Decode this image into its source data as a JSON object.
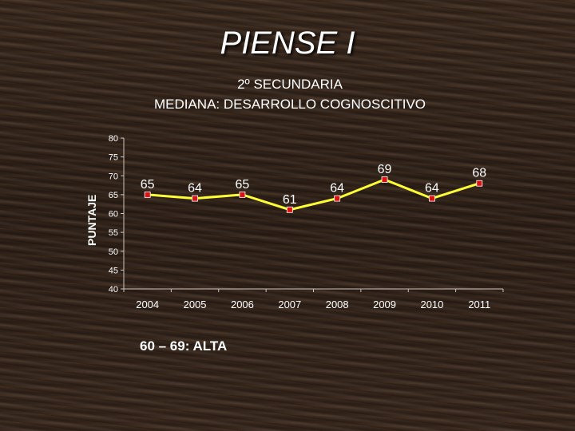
{
  "title": "PIENSE I",
  "subtitle_line1": "2º SECUNDARIA",
  "subtitle_line2": "MEDIANA: DESARROLLO COGNOSCITIVO",
  "note": "60 – 69: ALTA",
  "colors": {
    "line": "#ffff33",
    "marker": "#dd1111",
    "text": "#ffffff",
    "axis": "#cfc6bd"
  },
  "chart_data": {
    "type": "line",
    "title": "",
    "xlabel": "",
    "ylabel": "PUNTAJE",
    "categories": [
      "2004",
      "2005",
      "2006",
      "2007",
      "2008",
      "2009",
      "2010",
      "2011"
    ],
    "series": [
      {
        "values": [
          65,
          64,
          65,
          61,
          64,
          69,
          64,
          68
        ]
      }
    ],
    "data_labels": [
      "65",
      "64",
      "65",
      "61",
      "64",
      "69",
      "64",
      "68"
    ],
    "ylim": [
      40,
      80
    ],
    "yticks": [
      40,
      45,
      50,
      55,
      60,
      65,
      70,
      75,
      80
    ],
    "grid": false,
    "legend": "none"
  }
}
